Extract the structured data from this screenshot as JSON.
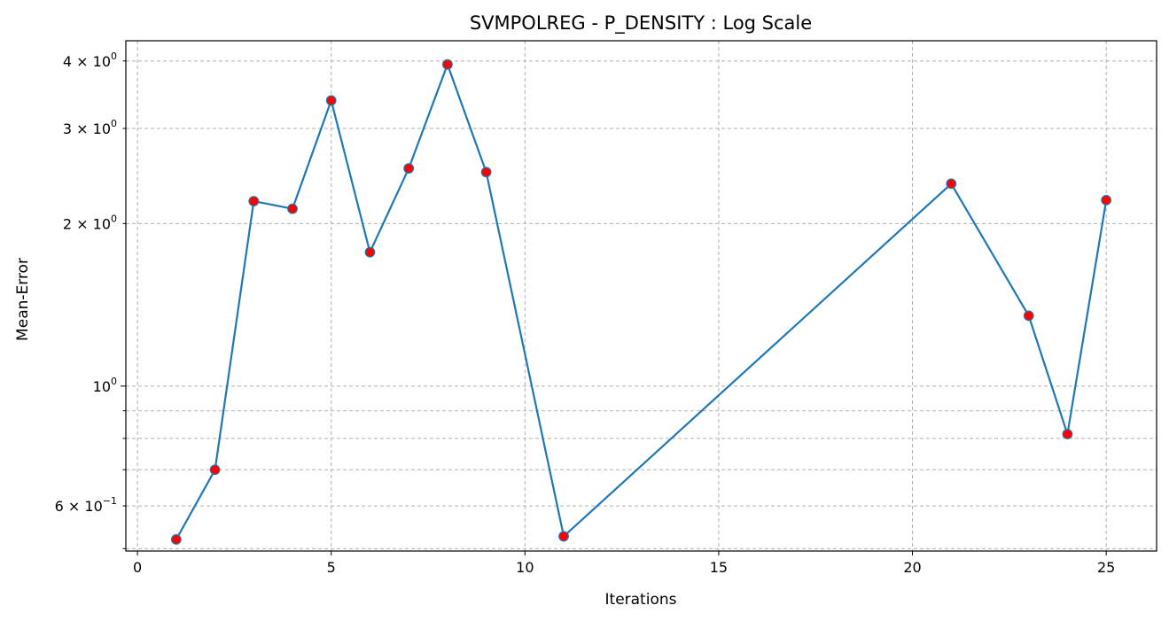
{
  "chart_data": {
    "type": "line",
    "title": "SVMPOLREG - P_DENSITY : Log Scale",
    "xlabel": "Iterations",
    "ylabel": "Mean-Error",
    "yscale": "log",
    "xlim": [
      -0.3,
      26.3
    ],
    "ylim": [
      0.495,
      4.36
    ],
    "grid": true,
    "grid_style": "dashed",
    "x_ticks": [
      0,
      5,
      10,
      15,
      20,
      25
    ],
    "y_major_ticks": [
      {
        "value": 1,
        "mantissa": "",
        "base": "10",
        "exp": "0"
      }
    ],
    "y_minor_ticks": [
      0.5,
      0.6,
      0.7,
      0.8,
      0.9,
      2,
      3,
      4
    ],
    "y_labeled_minor_ticks": [
      {
        "value": 4,
        "mantissa": "4 × ",
        "base": "10",
        "exp": "0"
      },
      {
        "value": 3,
        "mantissa": "3 × ",
        "base": "10",
        "exp": "0"
      },
      {
        "value": 2,
        "mantissa": "2 × ",
        "base": "10",
        "exp": "0"
      },
      {
        "value": 0.6,
        "mantissa": "6 × ",
        "base": "10",
        "exp": "−1"
      }
    ],
    "series": [
      {
        "line_color": "#1f77b4",
        "marker_color": "#ff0000",
        "x": [
          1,
          2,
          3,
          4,
          5,
          6,
          7,
          8,
          9,
          11,
          21,
          23,
          24,
          25
        ],
        "y": [
          0.52,
          0.7,
          2.2,
          2.13,
          3.38,
          1.77,
          2.53,
          3.94,
          2.49,
          0.527,
          2.37,
          1.35,
          0.815,
          2.21
        ]
      }
    ]
  }
}
